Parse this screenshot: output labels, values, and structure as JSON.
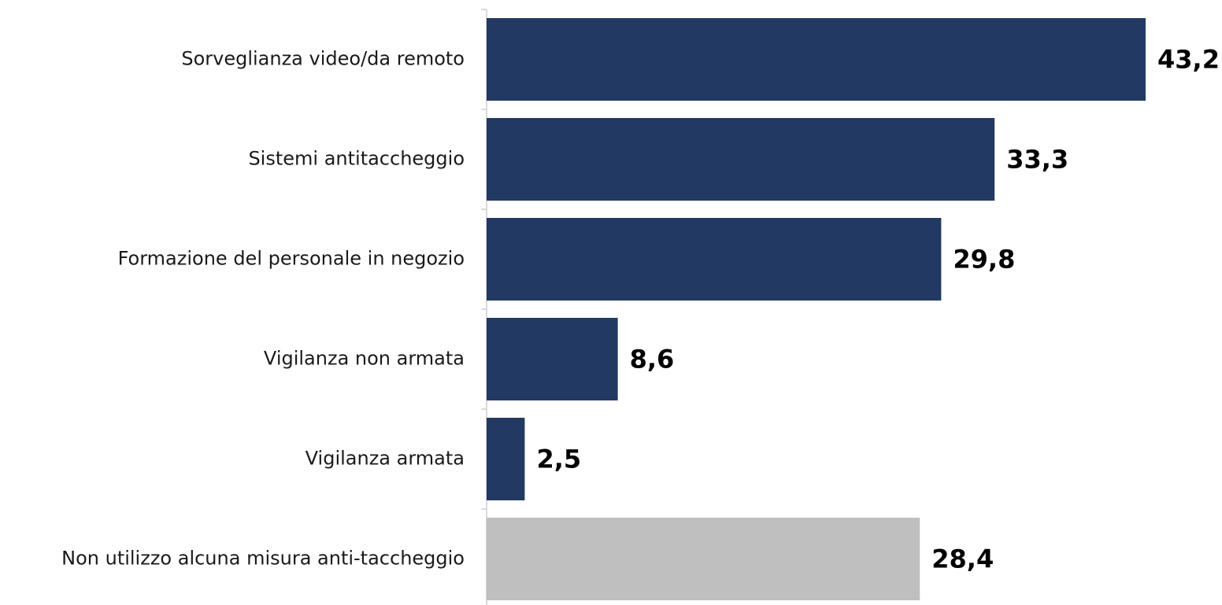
{
  "chart_data": {
    "type": "barh",
    "categories": [
      "Sorveglianza video/da remoto",
      "Sistemi antitaccheggio",
      "Formazione del personale in negozio",
      "Vigilanza non armata",
      "Vigilanza armata",
      "Non utilizzo alcuna misura anti-taccheggio"
    ],
    "values": [
      43.2,
      33.3,
      29.8,
      8.6,
      2.5,
      28.4
    ],
    "value_labels": [
      "43,2",
      "33,3",
      "29,8",
      "8,6",
      "2,5",
      "28,4"
    ],
    "colors": [
      "#223a63",
      "#223a63",
      "#223a63",
      "#223a63",
      "#223a63",
      "#bfbfbf"
    ]
  }
}
